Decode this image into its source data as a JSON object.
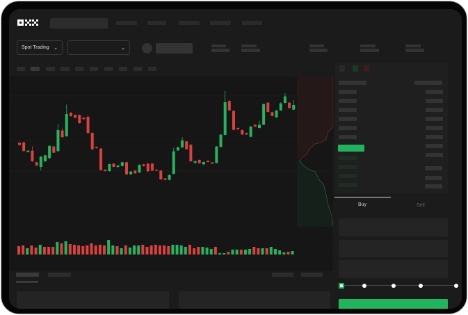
{
  "header": {
    "logo": "OKX"
  },
  "market_selector": {
    "label": "Spot Trading",
    "pair_value": ""
  },
  "order_form": {
    "tabs": [
      {
        "label": "Buy",
        "active": true
      },
      {
        "label": "Sell",
        "active": false
      }
    ],
    "leverage_slider_value": 0
  },
  "colors": {
    "up": "#26b35f",
    "down": "#d9413f",
    "background": "#1b1b1b",
    "buy_button": "#22b35e"
  },
  "chart_data": {
    "type": "candlestick",
    "note_units": "relative price (no axis printed)",
    "candles": [
      [
        200,
        202,
        192,
        190
      ],
      [
        202,
        204,
        166,
        164
      ],
      [
        160,
        168,
        160,
        166
      ],
      [
        166,
        185,
        118,
        120
      ],
      [
        116,
        118,
        100,
        102
      ],
      [
        96,
        142,
        80,
        140
      ],
      [
        120,
        148,
        118,
        146
      ],
      [
        134,
        188,
        130,
        187
      ],
      [
        184,
        186,
        156,
        157
      ],
      [
        164,
        282,
        162,
        255
      ],
      [
        253,
        262,
        222,
        224
      ],
      [
        228,
        365,
        226,
        324
      ],
      [
        330,
        332,
        312,
        315
      ],
      [
        320,
        322,
        306,
        308
      ],
      [
        320,
        322,
        282,
        285
      ],
      [
        308,
        310,
        300,
        302
      ],
      [
        312,
        320,
        240,
        242
      ],
      [
        243,
        245,
        170,
        172
      ],
      [
        182,
        184,
        175,
        177
      ],
      [
        175,
        177,
        80,
        82
      ],
      [
        84,
        86,
        76,
        78
      ],
      [
        78,
        110,
        76,
        108
      ],
      [
        110,
        112,
        94,
        96
      ],
      [
        96,
        104,
        90,
        102
      ],
      [
        100,
        118,
        98,
        116
      ],
      [
        116,
        118,
        62,
        64
      ],
      [
        64,
        78,
        62,
        76
      ],
      [
        80,
        82,
        66,
        68
      ],
      [
        72,
        107,
        70,
        105
      ],
      [
        107,
        109,
        98,
        100
      ],
      [
        110,
        112,
        75,
        77
      ],
      [
        110,
        112,
        78,
        80
      ],
      [
        84,
        86,
        80,
        81
      ],
      [
        80,
        82,
        40,
        42
      ],
      [
        46,
        48,
        38,
        40
      ],
      [
        40,
        63,
        38,
        61
      ],
      [
        66,
        178,
        64,
        163
      ],
      [
        167,
        183,
        165,
        181
      ],
      [
        180,
        225,
        178,
        210
      ],
      [
        206,
        208,
        170,
        172
      ],
      [
        192,
        194,
        118,
        120
      ],
      [
        114,
        122,
        108,
        121
      ],
      [
        126,
        128,
        110,
        112
      ],
      [
        107,
        119,
        105,
        117
      ],
      [
        122,
        124,
        115,
        117
      ],
      [
        115,
        117,
        108,
        110
      ],
      [
        113,
        186,
        111,
        184
      ],
      [
        182,
        237,
        180,
        235
      ],
      [
        234,
        423,
        232,
        375
      ],
      [
        380,
        386,
        338,
        340
      ],
      [
        338,
        340,
        254,
        256
      ],
      [
        264,
        266,
        256,
        258
      ],
      [
        255,
        257,
        234,
        236
      ],
      [
        242,
        244,
        234,
        236
      ],
      [
        226,
        272,
        224,
        270
      ],
      [
        277,
        282,
        268,
        270
      ],
      [
        264,
        295,
        262,
        278
      ],
      [
        278,
        369,
        276,
        367
      ],
      [
        373,
        375,
        331,
        333
      ],
      [
        332,
        334,
        314,
        316
      ],
      [
        310,
        342,
        308,
        339
      ],
      [
        340,
        375,
        338,
        370
      ],
      [
        372,
        414,
        370,
        400
      ],
      [
        373,
        375,
        348,
        350
      ],
      [
        343,
        384,
        341,
        363
      ]
    ],
    "volume": [
      [
        12,
        0
      ],
      [
        13,
        0
      ],
      [
        9,
        1
      ],
      [
        13,
        0
      ],
      [
        10,
        0
      ],
      [
        14,
        1
      ],
      [
        11,
        0
      ],
      [
        11,
        0
      ],
      [
        11,
        0
      ],
      [
        18,
        1
      ],
      [
        16,
        0
      ],
      [
        19,
        1
      ],
      [
        15,
        0
      ],
      [
        14,
        0
      ],
      [
        13,
        0
      ],
      [
        12,
        0
      ],
      [
        13,
        0
      ],
      [
        16,
        0
      ],
      [
        13,
        0
      ],
      [
        14,
        0
      ],
      [
        13,
        0
      ],
      [
        21,
        1
      ],
      [
        13,
        1
      ],
      [
        12,
        0
      ],
      [
        9,
        1
      ],
      [
        13,
        0
      ],
      [
        10,
        1
      ],
      [
        13,
        1
      ],
      [
        13,
        1
      ],
      [
        14,
        0
      ],
      [
        11,
        0
      ],
      [
        13,
        0
      ],
      [
        14,
        0
      ],
      [
        13,
        0
      ],
      [
        13,
        0
      ],
      [
        12,
        0
      ],
      [
        14,
        1
      ],
      [
        14,
        1
      ],
      [
        13,
        1
      ],
      [
        11,
        1
      ],
      [
        14,
        0
      ],
      [
        9,
        0
      ],
      [
        11,
        0
      ],
      [
        11,
        1
      ],
      [
        10,
        1
      ],
      [
        8,
        1
      ],
      [
        11,
        0
      ],
      [
        2,
        1
      ],
      [
        2,
        1
      ],
      [
        4,
        0
      ],
      [
        7,
        1
      ],
      [
        7,
        1
      ],
      [
        7,
        0
      ],
      [
        7,
        1
      ],
      [
        8,
        1
      ],
      [
        11,
        0
      ],
      [
        9,
        0
      ],
      [
        9,
        1
      ],
      [
        9,
        0
      ],
      [
        11,
        1
      ],
      [
        8,
        1
      ],
      [
        6,
        1
      ],
      [
        3,
        1
      ],
      [
        4,
        0
      ],
      [
        5,
        1
      ]
    ]
  }
}
